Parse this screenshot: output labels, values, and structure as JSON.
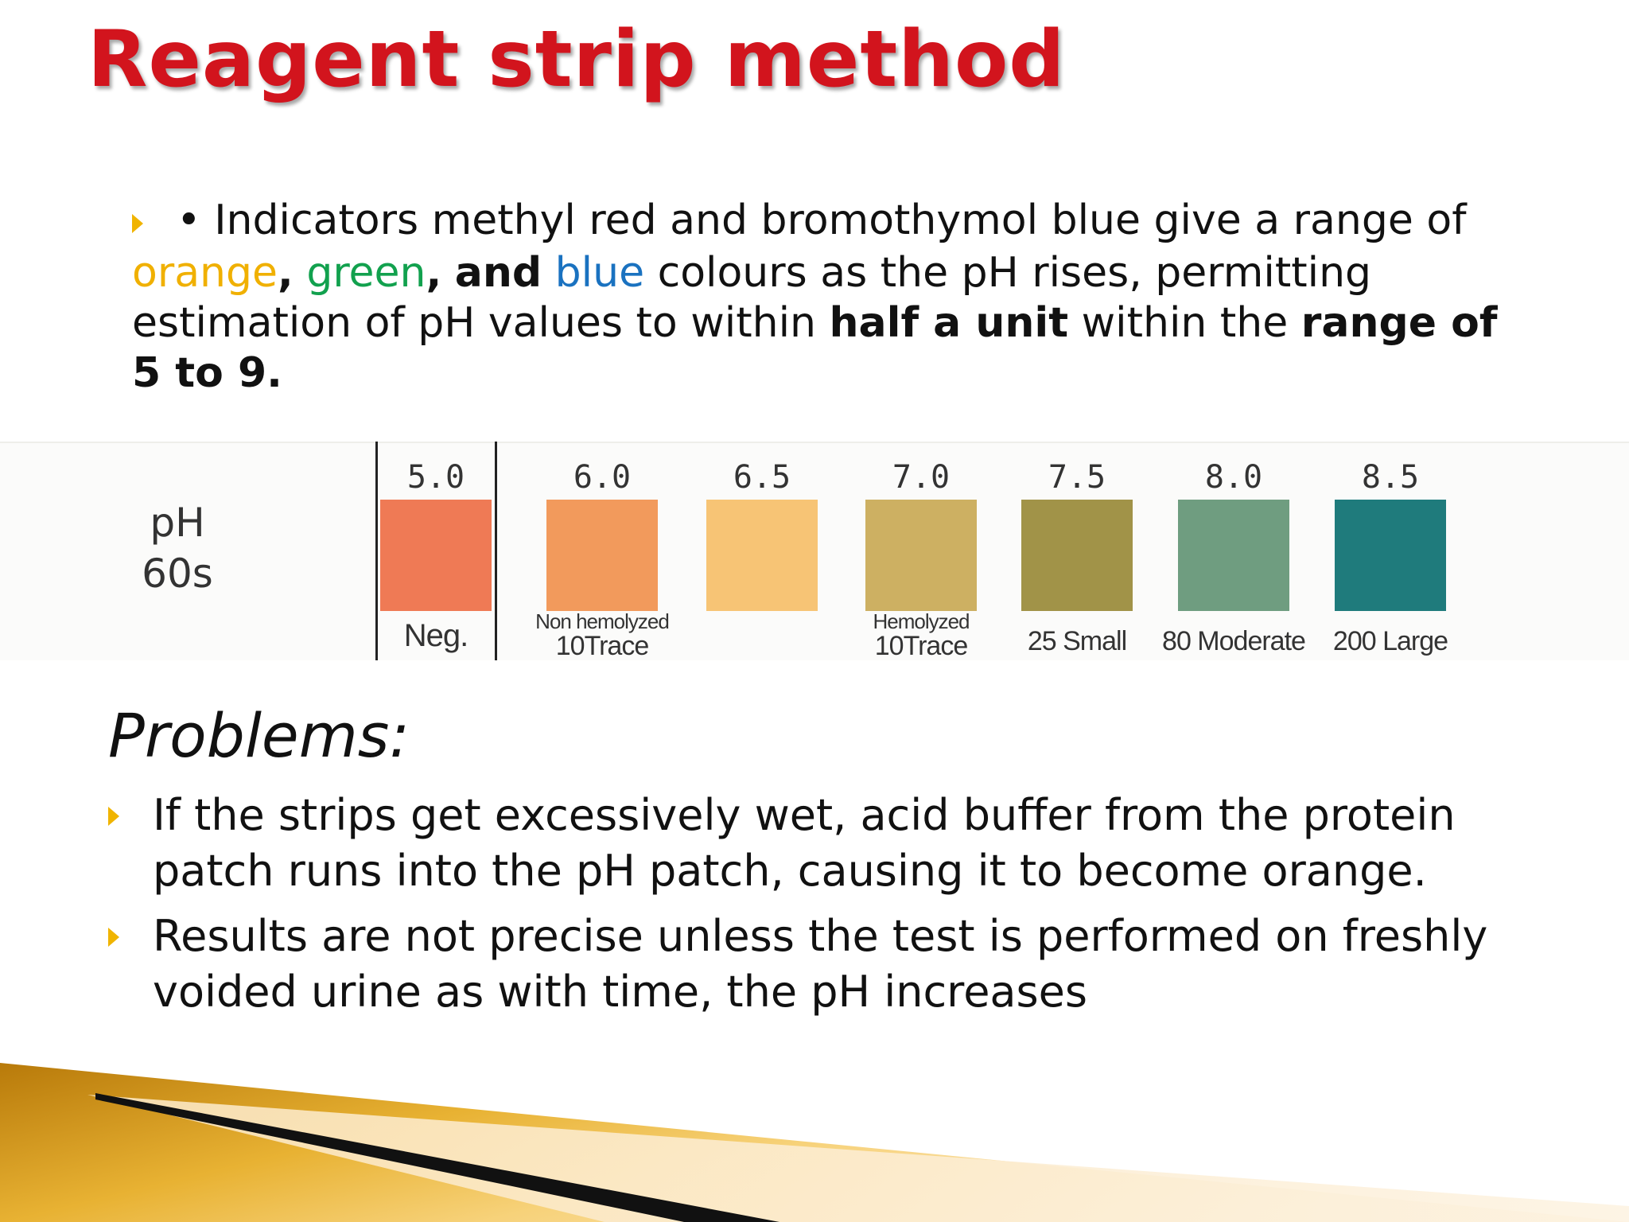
{
  "slide": {
    "title": "Reagent strip method",
    "intro": {
      "prefix": "• Indicators methyl red and bromothymol blue give a range of",
      "orange": "orange",
      "comma1": ",",
      "green": "green",
      "comma2": ",",
      "and": "and",
      "blue": "blue",
      "mid": "colours as the pH rises, permitting estimation of pH values to within",
      "half_unit": "half a unit",
      "within": "within the",
      "range": "range of 5 to 9."
    },
    "ph_chart": {
      "row_label_1": "pH",
      "row_label_2": "60s",
      "columns": [
        {
          "value": "5.0",
          "color": "#ef7a55",
          "label": "Neg."
        },
        {
          "value": "6.0",
          "color": "#f29a5c",
          "label_line1": "Non hemolyzed",
          "label_line2": "10Trace"
        },
        {
          "value": "6.5",
          "color": "#f7c475"
        },
        {
          "value": "7.0",
          "color": "#cdb062",
          "label_line1": "Hemolyzed",
          "label_line2": "10Trace"
        },
        {
          "value": "7.5",
          "color": "#a19348",
          "label": "25 Small"
        },
        {
          "value": "8.0",
          "color": "#6f9d80",
          "label": "80 Moderate"
        },
        {
          "value": "8.5",
          "color": "#1f7b7c",
          "label": "200 Large"
        }
      ]
    },
    "problems": {
      "heading": "Problems:",
      "items": [
        " If the strips get excessively wet, acid buffer from the protein patch runs into the pH patch, causing it to become orange.",
        " Results are not precise unless the test is performed on freshly voided urine as with time, the pH increases"
      ]
    },
    "colors": {
      "title": "#d2141d",
      "bullet": "#f0b400",
      "orange": "#f0b000",
      "green": "#12a14e",
      "blue": "#1a72c0"
    }
  }
}
